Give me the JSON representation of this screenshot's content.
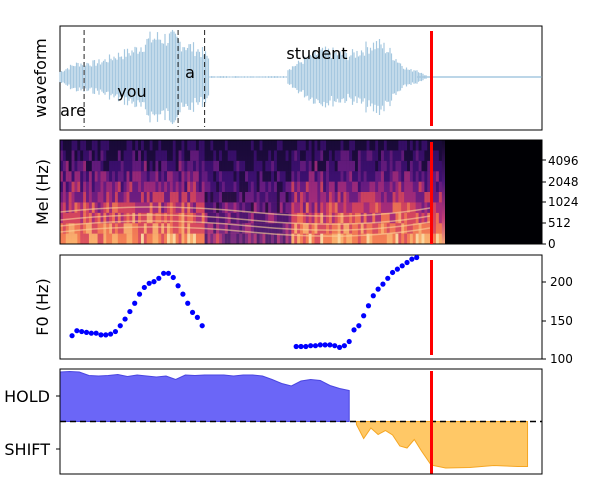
{
  "panels": {
    "waveform": {
      "ylabel": "waveform",
      "words": [
        {
          "text": "are"
        },
        {
          "text": "you"
        },
        {
          "text": "a"
        },
        {
          "text": "student"
        }
      ]
    },
    "mel": {
      "ylabel": "Mel (Hz)",
      "ticks": [
        "4096",
        "2048",
        "1024",
        "512",
        "0"
      ]
    },
    "f0": {
      "ylabel": "F0 (Hz)",
      "ticks": [
        "200",
        "150",
        "100"
      ]
    },
    "turn": {
      "ticks": [
        "HOLD",
        "SHIFT"
      ]
    }
  },
  "colors": {
    "waveform": "#a6c8e0",
    "cursor": "#ff0000",
    "f0_points": "#0000ff",
    "hold_fill": "#6b66f7",
    "shift_fill": "#ffc866"
  },
  "chart_data": [
    {
      "type": "line",
      "title": "",
      "ylabel": "waveform",
      "x_range": [
        0,
        1
      ],
      "word_boundaries": [
        0.05,
        0.245,
        0.3
      ],
      "words": [
        "are",
        "you",
        "a",
        "student"
      ],
      "cursor_x": 0.77
    },
    {
      "type": "heatmap",
      "ylabel": "Mel (Hz)",
      "yticks": [
        0,
        512,
        1024,
        2048,
        4096
      ],
      "active_until_x": 0.79,
      "cursor_x": 0.77
    },
    {
      "type": "scatter",
      "ylabel": "F0 (Hz)",
      "ylim": [
        100,
        225
      ],
      "yticks": [
        100,
        150,
        200
      ],
      "x": [
        0.025,
        0.035,
        0.045,
        0.055,
        0.065,
        0.075,
        0.085,
        0.095,
        0.105,
        0.115,
        0.125,
        0.135,
        0.145,
        0.155,
        0.165,
        0.175,
        0.185,
        0.195,
        0.205,
        0.215,
        0.225,
        0.235,
        0.245,
        0.255,
        0.265,
        0.275,
        0.285,
        0.295,
        0.49,
        0.5,
        0.51,
        0.52,
        0.53,
        0.54,
        0.55,
        0.56,
        0.57,
        0.58,
        0.59,
        0.6,
        0.61,
        0.62,
        0.63,
        0.64,
        0.65,
        0.66,
        0.67,
        0.68,
        0.69,
        0.7,
        0.71,
        0.72,
        0.73,
        0.74
      ],
      "y": [
        128,
        134,
        133,
        132,
        131,
        131,
        129,
        129,
        130,
        133,
        140,
        148,
        157,
        167,
        178,
        186,
        191,
        193,
        197,
        203,
        203,
        198,
        188,
        178,
        167,
        156,
        150,
        140,
        115,
        115,
        115,
        116,
        116,
        117,
        117,
        117,
        116,
        114,
        116,
        121,
        135,
        140,
        152,
        164,
        176,
        184,
        190,
        197,
        204,
        208,
        212,
        216,
        220,
        222
      ],
      "cursor_x": 0.77
    },
    {
      "type": "area",
      "yticks": [
        "HOLD",
        "SHIFT"
      ],
      "threshold": 0,
      "series": [
        {
          "x": [
            0,
            0.02,
            0.04,
            0.06,
            0.08,
            0.1,
            0.12,
            0.14,
            0.16,
            0.18,
            0.2,
            0.22,
            0.24,
            0.26,
            0.28,
            0.3,
            0.32,
            0.34,
            0.36,
            0.38,
            0.4,
            0.42,
            0.44,
            0.46,
            0.48,
            0.5,
            0.52,
            0.54,
            0.56,
            0.58,
            0.6
          ],
          "values": [
            0.99,
            1.0,
            0.99,
            0.92,
            0.91,
            0.92,
            0.94,
            0.9,
            0.93,
            0.91,
            0.89,
            0.91,
            0.84,
            0.93,
            0.92,
            0.93,
            0.93,
            0.93,
            0.91,
            0.93,
            0.93,
            0.91,
            0.84,
            0.76,
            0.71,
            0.81,
            0.84,
            0.82,
            0.72,
            0.66,
            0.62
          ]
        },
        {
          "x": [
            0.615,
            0.63,
            0.645,
            0.66,
            0.675,
            0.69,
            0.705,
            0.72,
            0.735,
            0.75,
            0.77,
            0.8,
            0.85,
            0.9,
            0.95,
            0.97
          ],
          "values": [
            -0.06,
            -0.34,
            -0.13,
            -0.26,
            -0.18,
            -0.27,
            -0.49,
            -0.53,
            -0.36,
            -0.59,
            -0.87,
            -0.93,
            -0.92,
            -0.88,
            -0.9,
            -0.9
          ]
        }
      ],
      "cursor_x": 0.77
    }
  ]
}
